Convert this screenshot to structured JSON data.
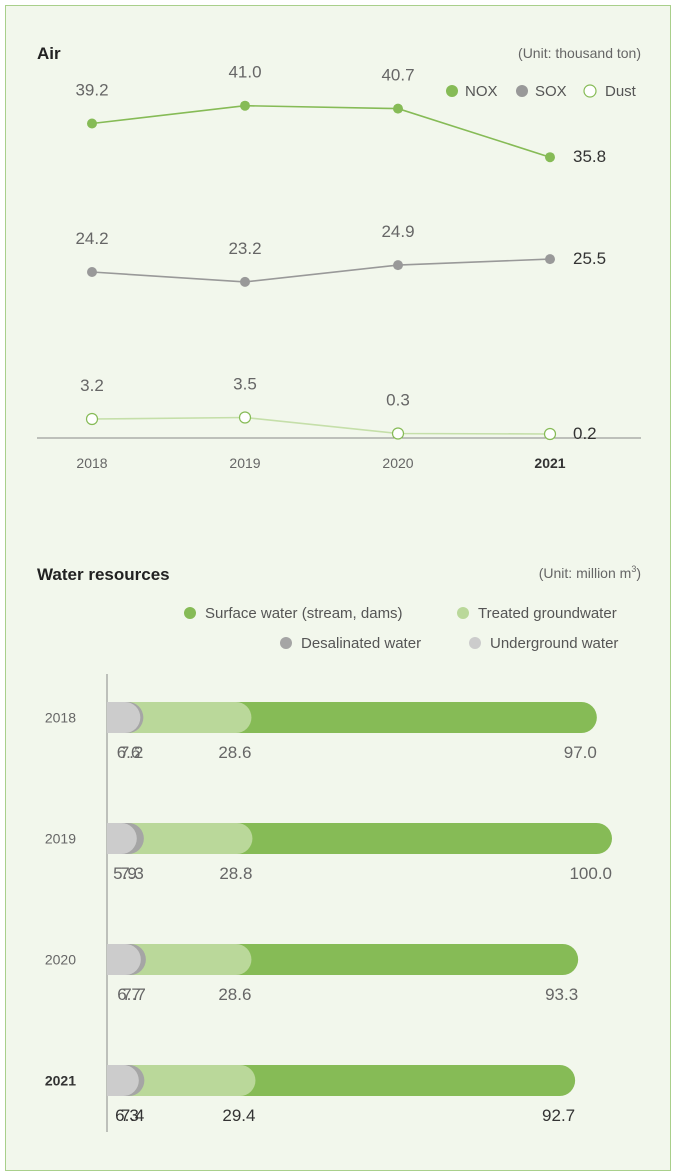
{
  "colors": {
    "nox": "#86bb56",
    "sox": "#999999",
    "dust": "#86bb56",
    "dust_line": "#c5dfa9",
    "surface": "#86bb56",
    "treated": "#bad89a",
    "desalinated": "#a5a5a5",
    "underground": "#cccccc",
    "axis": "#888888"
  },
  "chart_data": [
    {
      "type": "line",
      "title": "Air",
      "unit": "(Unit: thousand ton)",
      "categories": [
        "2018",
        "2019",
        "2020",
        "2021"
      ],
      "series": [
        {
          "name": "NOX",
          "values": [
            39.2,
            41.0,
            40.7,
            35.8
          ],
          "labels": [
            "39.2",
            "41.0",
            "40.7",
            "35.8"
          ]
        },
        {
          "name": "SOX",
          "values": [
            24.2,
            23.2,
            24.9,
            25.5
          ],
          "labels": [
            "24.2",
            "23.2",
            "24.9",
            "25.5"
          ]
        },
        {
          "name": "Dust",
          "values": [
            3.2,
            3.5,
            0.3,
            0.2
          ],
          "labels": [
            "3.2",
            "3.5",
            "0.3",
            "0.2"
          ]
        }
      ],
      "legend_position": "top-right"
    },
    {
      "type": "bar",
      "orientation": "horizontal",
      "stacking": "cumulative",
      "title": "Water resources",
      "unit_prefix": "(Unit: million m",
      "unit_sup": "3",
      "unit_suffix": ")",
      "categories": [
        "2018",
        "2019",
        "2020",
        "2021"
      ],
      "series": [
        {
          "name": "Underground water",
          "values": [
            6.6,
            5.9,
            6.7,
            6.3
          ],
          "labels": [
            "6.6",
            "5.9",
            "6.7",
            "6.3"
          ]
        },
        {
          "name": "Desalinated water",
          "values": [
            7.2,
            7.3,
            7.7,
            7.4
          ],
          "labels": [
            "7.2",
            "7.3",
            "7.7",
            "7.4"
          ]
        },
        {
          "name": "Treated groundwater",
          "values": [
            28.6,
            28.8,
            28.6,
            29.4
          ],
          "labels": [
            "28.6",
            "28.8",
            "28.6",
            "29.4"
          ]
        },
        {
          "name": "Surface water (stream, dams)",
          "values": [
            97.0,
            100.0,
            93.3,
            92.7
          ],
          "labels": [
            "97.0",
            "100.0",
            "93.3",
            "92.7"
          ]
        }
      ],
      "legend_order": [
        "Surface water (stream, dams)",
        "Treated groundwater",
        "Desalinated water",
        "Underground water"
      ],
      "legend_position": "top-right"
    }
  ]
}
